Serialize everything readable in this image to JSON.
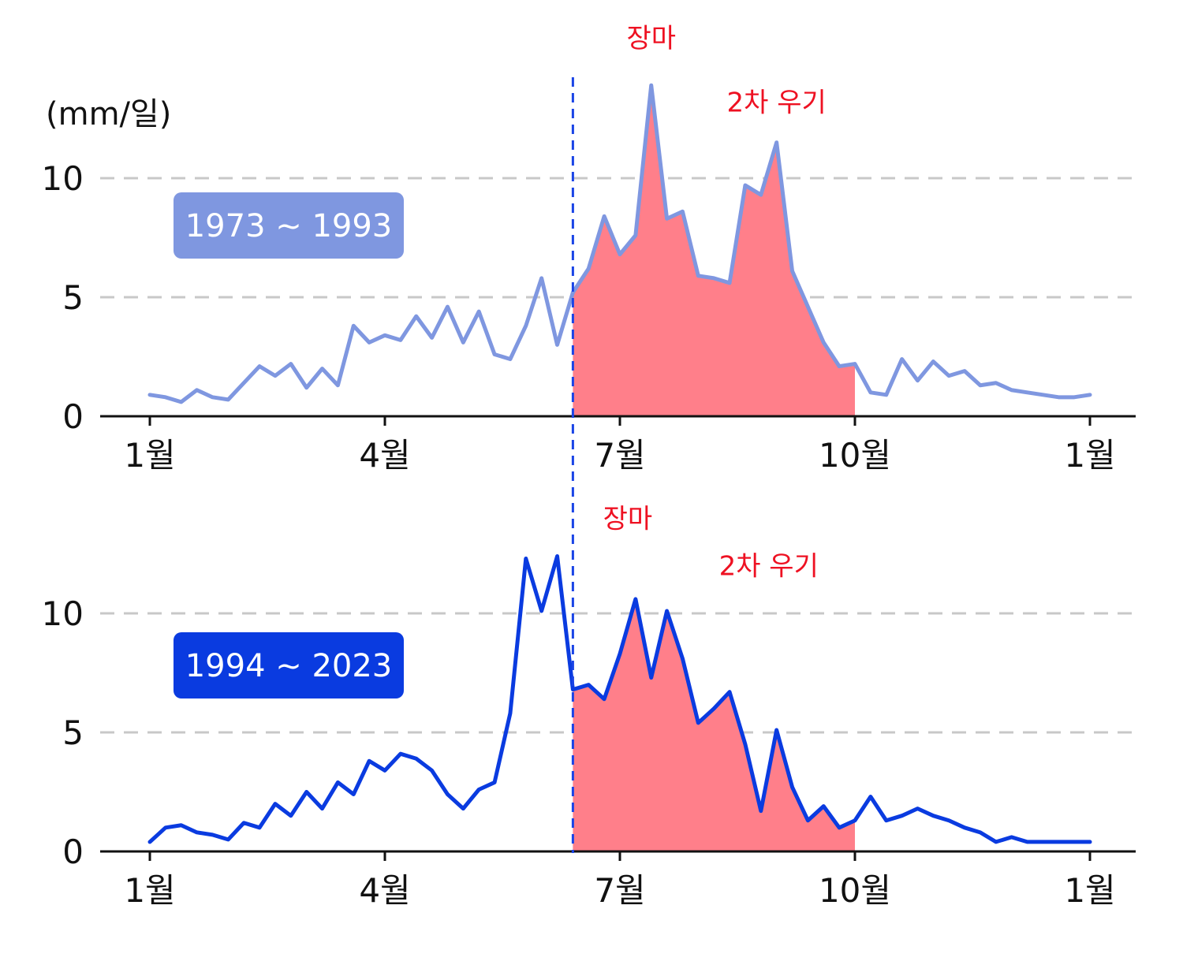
{
  "y_unit_label": "(mm/일)",
  "colors": {
    "grid": "#c8c8c8",
    "axis": "#111111",
    "fill": "#ff7f8a",
    "annotation": "#ee1122",
    "marker_line": "#1a44e6"
  },
  "chart_data": [
    {
      "type": "line",
      "badge_label": "1973 ~ 1993",
      "color": "#7f97e0",
      "xlabel": "",
      "ylabel": "(mm/일)",
      "x_ticks": [
        "1월",
        "4월",
        "7월",
        "10월",
        "1월"
      ],
      "x_tick_positions": [
        0,
        3,
        6,
        9,
        12
      ],
      "x_range": [
        0,
        12
      ],
      "ylim": [
        0,
        13.5
      ],
      "y_ticks": [
        0,
        5,
        10
      ],
      "grid": "horizontal dashed at 5 and 10",
      "shaded_range": [
        5.4,
        9.0
      ],
      "marker_x": 5.4,
      "annotations": [
        {
          "text": "장마",
          "x": 6.4,
          "y": 15.5
        },
        {
          "text": "2차 우기",
          "x": 8.0,
          "y": 12.8
        }
      ],
      "x": [
        0.0,
        0.2,
        0.4,
        0.6,
        0.8,
        1.0,
        1.2,
        1.4,
        1.6,
        1.8,
        2.0,
        2.2,
        2.4,
        2.6,
        2.8,
        3.0,
        3.2,
        3.4,
        3.6,
        3.8,
        4.0,
        4.2,
        4.4,
        4.6,
        4.8,
        5.0,
        5.2,
        5.4,
        5.6,
        5.8,
        6.0,
        6.2,
        6.4,
        6.6,
        6.8,
        7.0,
        7.2,
        7.4,
        7.6,
        7.8,
        8.0,
        8.2,
        8.4,
        8.6,
        8.8,
        9.0,
        9.2,
        9.4,
        9.6,
        9.8,
        10.0,
        10.2,
        10.4,
        10.6,
        10.8,
        11.0,
        11.2,
        11.4,
        11.6,
        11.8,
        12.0
      ],
      "y": [
        0.9,
        0.8,
        0.6,
        1.1,
        0.8,
        0.7,
        1.4,
        2.1,
        1.7,
        2.2,
        1.2,
        2.0,
        1.3,
        3.8,
        3.1,
        3.4,
        3.2,
        4.2,
        3.3,
        4.6,
        3.1,
        4.4,
        2.6,
        2.4,
        3.8,
        5.8,
        3.0,
        5.2,
        6.2,
        8.4,
        6.8,
        7.6,
        13.9,
        8.3,
        8.6,
        5.9,
        5.8,
        5.6,
        9.7,
        9.3,
        11.5,
        6.1,
        4.6,
        3.1,
        2.1,
        2.2,
        1.0,
        0.9,
        2.4,
        1.5,
        2.3,
        1.7,
        1.9,
        1.3,
        1.4,
        1.1,
        1.0,
        0.9,
        0.8,
        0.8,
        0.9
      ]
    },
    {
      "type": "line",
      "badge_label": "1994 ~ 2023",
      "color": "#0a3be0",
      "xlabel": "",
      "ylabel": "",
      "x_ticks": [
        "1월",
        "4월",
        "7월",
        "10월",
        "1월"
      ],
      "x_tick_positions": [
        0,
        3,
        6,
        9,
        12
      ],
      "x_range": [
        0,
        12
      ],
      "ylim": [
        0,
        13.5
      ],
      "y_ticks": [
        0,
        5,
        10
      ],
      "grid": "horizontal dashed at 5 and 10",
      "shaded_range": [
        5.4,
        9.0
      ],
      "marker_x": 5.4,
      "annotations": [
        {
          "text": "장마",
          "x": 6.1,
          "y": 13.6
        },
        {
          "text": "2차 우기",
          "x": 7.9,
          "y": 11.6
        }
      ],
      "x": [
        0.0,
        0.2,
        0.4,
        0.6,
        0.8,
        1.0,
        1.2,
        1.4,
        1.6,
        1.8,
        2.0,
        2.2,
        2.4,
        2.6,
        2.8,
        3.0,
        3.2,
        3.4,
        3.6,
        3.8,
        4.0,
        4.2,
        4.4,
        4.6,
        4.8,
        5.0,
        5.2,
        5.4,
        5.6,
        5.8,
        6.0,
        6.2,
        6.4,
        6.6,
        6.8,
        7.0,
        7.2,
        7.4,
        7.6,
        7.8,
        8.0,
        8.2,
        8.4,
        8.6,
        8.8,
        9.0,
        9.2,
        9.4,
        9.6,
        9.8,
        10.0,
        10.2,
        10.4,
        10.6,
        10.8,
        11.0,
        11.2,
        11.4,
        11.6,
        11.8,
        12.0
      ],
      "y": [
        0.4,
        1.0,
        1.1,
        0.8,
        0.7,
        0.5,
        1.2,
        1.0,
        2.0,
        1.5,
        2.5,
        1.8,
        2.9,
        2.4,
        3.8,
        3.4,
        4.1,
        3.9,
        3.4,
        2.4,
        1.8,
        2.6,
        2.9,
        5.8,
        12.3,
        10.1,
        12.4,
        6.8,
        7.0,
        6.4,
        8.3,
        10.6,
        7.3,
        10.1,
        8.1,
        5.4,
        6.0,
        6.7,
        4.5,
        1.7,
        5.1,
        2.7,
        1.3,
        1.9,
        1.0,
        1.3,
        2.3,
        1.3,
        1.5,
        1.8,
        1.5,
        1.3,
        1.0,
        0.8,
        0.4,
        0.6,
        0.4,
        0.4,
        0.4,
        0.4,
        0.4
      ]
    }
  ]
}
